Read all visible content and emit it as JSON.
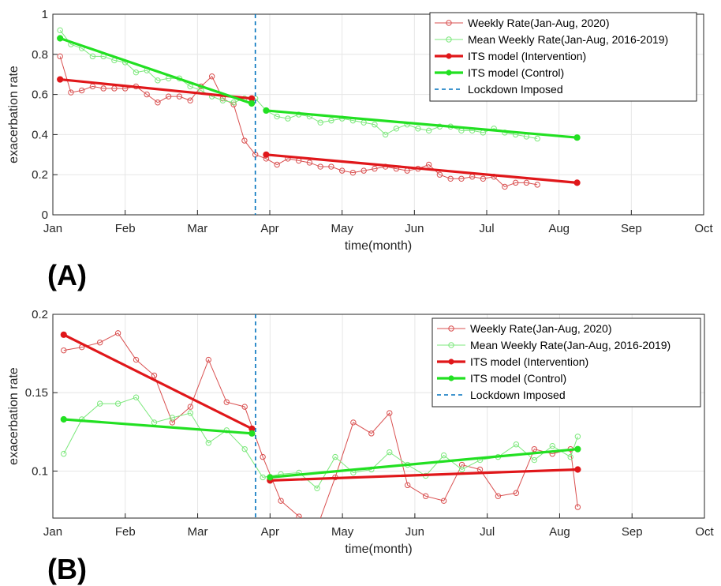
{
  "chart_data": [
    {
      "panel": "(A)",
      "type": "line",
      "xlabel": "time(month)",
      "ylabel": "exacerbation rate",
      "x_ticks": [
        "Jan",
        "Feb",
        "Mar",
        "Apr",
        "May",
        "Jun",
        "Jul",
        "Aug",
        "Sep",
        "Oct"
      ],
      "y_ticks": [
        "0",
        "0.2",
        "0.4",
        "0.6",
        "0.8",
        "1"
      ],
      "ylim": [
        0,
        1
      ],
      "grid": true,
      "legend_position": "top-right",
      "lockdown": {
        "name": "Lockdown Imposed",
        "month": 2.8,
        "color": "#0072BD"
      },
      "series": [
        {
          "name": "Weekly Rate(Jan-Aug, 2020)",
          "color": "#D95050",
          "style": "thin-marker",
          "x": [
            0.1,
            0.25,
            0.4,
            0.55,
            0.7,
            0.85,
            1.0,
            1.15,
            1.3,
            1.45,
            1.6,
            1.75,
            1.9,
            2.05,
            2.2,
            2.35,
            2.5,
            2.65,
            2.8,
            2.95,
            3.1,
            3.25,
            3.4,
            3.55,
            3.7,
            3.85,
            4.0,
            4.15,
            4.3,
            4.45,
            4.6,
            4.75,
            4.9,
            5.05,
            5.2,
            5.35,
            5.5,
            5.65,
            5.8,
            5.95,
            6.1,
            6.25,
            6.4,
            6.55,
            6.7
          ],
          "y": [
            0.79,
            0.61,
            0.62,
            0.64,
            0.63,
            0.63,
            0.63,
            0.64,
            0.6,
            0.56,
            0.59,
            0.59,
            0.57,
            0.64,
            0.69,
            0.58,
            0.55,
            0.37,
            0.3,
            0.28,
            0.25,
            0.28,
            0.27,
            0.26,
            0.24,
            0.24,
            0.22,
            0.21,
            0.22,
            0.23,
            0.24,
            0.23,
            0.22,
            0.23,
            0.25,
            0.2,
            0.18,
            0.18,
            0.19,
            0.18,
            0.19,
            0.14,
            0.16,
            0.16,
            0.15
          ]
        },
        {
          "name": "Mean Weekly Rate(Jan-Aug, 2016-2019)",
          "color": "#7CE87C",
          "style": "thin-marker",
          "x": [
            0.1,
            0.25,
            0.4,
            0.55,
            0.7,
            0.85,
            1.0,
            1.15,
            1.3,
            1.45,
            1.6,
            1.75,
            1.9,
            2.05,
            2.2,
            2.35,
            2.5,
            2.65,
            2.8,
            2.95,
            3.1,
            3.25,
            3.4,
            3.55,
            3.7,
            3.85,
            4.0,
            4.15,
            4.3,
            4.45,
            4.6,
            4.75,
            4.9,
            5.05,
            5.2,
            5.35,
            5.5,
            5.65,
            5.8,
            5.95,
            6.1,
            6.25,
            6.4,
            6.55,
            6.7
          ],
          "y": [
            0.92,
            0.85,
            0.83,
            0.79,
            0.79,
            0.77,
            0.76,
            0.71,
            0.72,
            0.67,
            0.68,
            0.68,
            0.64,
            0.62,
            0.59,
            0.57,
            0.56,
            0.58,
            0.58,
            0.52,
            0.49,
            0.48,
            0.5,
            0.49,
            0.46,
            0.47,
            0.48,
            0.47,
            0.46,
            0.45,
            0.4,
            0.43,
            0.45,
            0.43,
            0.42,
            0.44,
            0.44,
            0.42,
            0.42,
            0.41,
            0.43,
            0.41,
            0.4,
            0.39,
            0.38
          ]
        },
        {
          "name": "ITS model (Intervention)",
          "color": "#E0171A",
          "style": "thick-line",
          "segments": [
            {
              "x": [
                0.1,
                2.75
              ],
              "y": [
                0.675,
                0.58
              ]
            },
            {
              "x": [
                2.95,
                7.25
              ],
              "y": [
                0.3,
                0.16
              ]
            }
          ]
        },
        {
          "name": "ITS model (Control)",
          "color": "#22E022",
          "style": "thick-line",
          "segments": [
            {
              "x": [
                0.1,
                2.75
              ],
              "y": [
                0.88,
                0.555
              ]
            },
            {
              "x": [
                2.95,
                7.25
              ],
              "y": [
                0.52,
                0.385
              ]
            }
          ]
        }
      ]
    },
    {
      "panel": "(B)",
      "type": "line",
      "xlabel": "time(month)",
      "ylabel": "exacerbation rate",
      "x_ticks": [
        "Jan",
        "Feb",
        "Mar",
        "Apr",
        "May",
        "Jun",
        "Jul",
        "Aug",
        "Sep",
        "Oct"
      ],
      "y_ticks": [
        "0.1",
        "0.15",
        "0.2"
      ],
      "ylim": [
        0.07,
        0.2
      ],
      "grid": true,
      "legend_position": "top-right",
      "lockdown": {
        "name": "Lockdown Imposed",
        "month": 2.8,
        "color": "#0072BD"
      },
      "series": [
        {
          "name": "Weekly Rate(Jan-Aug, 2020)",
          "color": "#D95050",
          "style": "thin-marker",
          "x": [
            0.15,
            0.4,
            0.65,
            0.9,
            1.15,
            1.4,
            1.65,
            1.9,
            2.15,
            2.4,
            2.65,
            2.9,
            3.15,
            3.4,
            3.65,
            3.9,
            4.15,
            4.4,
            4.65,
            4.9,
            5.15,
            5.4,
            5.65,
            5.9,
            6.15,
            6.4,
            6.65,
            6.9,
            7.15,
            7.25
          ],
          "y": [
            0.177,
            0.179,
            0.182,
            0.188,
            0.171,
            0.161,
            0.131,
            0.141,
            0.171,
            0.144,
            0.141,
            0.109,
            0.081,
            0.071,
            0.064,
            0.096,
            0.131,
            0.124,
            0.137,
            0.091,
            0.084,
            0.081,
            0.104,
            0.101,
            0.084,
            0.086,
            0.114,
            0.111,
            0.114,
            0.077
          ]
        },
        {
          "name": "Mean Weekly Rate(Jan-Aug, 2016-2019)",
          "color": "#7CE87C",
          "style": "thin-marker",
          "x": [
            0.15,
            0.4,
            0.65,
            0.9,
            1.15,
            1.4,
            1.65,
            1.9,
            2.15,
            2.4,
            2.65,
            2.9,
            3.15,
            3.4,
            3.65,
            3.9,
            4.15,
            4.4,
            4.65,
            4.9,
            5.15,
            5.4,
            5.65,
            5.9,
            6.15,
            6.4,
            6.65,
            6.9,
            7.15,
            7.25
          ],
          "y": [
            0.111,
            0.133,
            0.143,
            0.143,
            0.147,
            0.131,
            0.134,
            0.137,
            0.118,
            0.126,
            0.114,
            0.096,
            0.098,
            0.099,
            0.089,
            0.109,
            0.099,
            0.101,
            0.112,
            0.104,
            0.097,
            0.11,
            0.101,
            0.107,
            0.109,
            0.117,
            0.107,
            0.116,
            0.109,
            0.122
          ]
        },
        {
          "name": "ITS model (Intervention)",
          "color": "#E0171A",
          "style": "thick-line",
          "segments": [
            {
              "x": [
                0.15,
                2.75
              ],
              "y": [
                0.187,
                0.127
              ]
            },
            {
              "x": [
                3.0,
                7.25
              ],
              "y": [
                0.094,
                0.101
              ]
            }
          ]
        },
        {
          "name": "ITS model (Control)",
          "color": "#22E022",
          "style": "thick-line",
          "segments": [
            {
              "x": [
                0.15,
                2.75
              ],
              "y": [
                0.133,
                0.124
              ]
            },
            {
              "x": [
                3.0,
                7.25
              ],
              "y": [
                0.096,
                0.114
              ]
            }
          ]
        }
      ]
    }
  ]
}
